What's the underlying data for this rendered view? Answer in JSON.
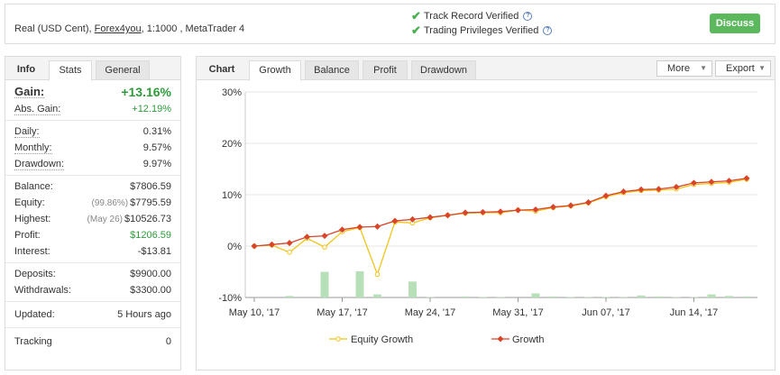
{
  "header": {
    "account_prefix": "Real (USD Cent), ",
    "broker": "Forex4you",
    "account_suffix": ", 1:1000 , MetaTrader 4",
    "track_record": "Track Record Verified",
    "trading_privileges": "Trading Privileges Verified",
    "discuss_label": "Discuss"
  },
  "left": {
    "tabs": {
      "title": "Info",
      "stats": "Stats",
      "general": "General"
    },
    "gain": {
      "label": "Gain:",
      "value": "+13.16%"
    },
    "abs_gain": {
      "label": "Abs. Gain:",
      "value": "+12.19%"
    },
    "daily": {
      "label": "Daily:",
      "value": "0.31%"
    },
    "monthly": {
      "label": "Monthly:",
      "value": "9.57%"
    },
    "drawdown": {
      "label": "Drawdown:",
      "value": "9.97%"
    },
    "balance": {
      "label": "Balance:",
      "value": "$7806.59"
    },
    "equity": {
      "label": "Equity:",
      "note": "(99.86%)",
      "value": "$7795.59"
    },
    "highest": {
      "label": "Highest:",
      "note": "(May 26)",
      "value": "$10526.73"
    },
    "profit": {
      "label": "Profit:",
      "value": "$1206.59"
    },
    "interest": {
      "label": "Interest:",
      "value": "-$13.81"
    },
    "deposits": {
      "label": "Deposits:",
      "value": "$9900.00"
    },
    "withdrawals": {
      "label": "Withdrawals:",
      "value": "$3300.00"
    },
    "updated": {
      "label": "Updated:",
      "value": "5 Hours ago"
    },
    "tracking": {
      "label": "Tracking",
      "value": "0"
    }
  },
  "right": {
    "tabs": {
      "title": "Chart",
      "growth": "Growth",
      "balance": "Balance",
      "profit": "Profit",
      "drawdown": "Drawdown"
    },
    "more_label": "More",
    "export_label": "Export"
  },
  "colors": {
    "equity": "#f0c419",
    "growth": "#d9452b",
    "bars": "#b8e0b8",
    "discuss": "#5cb85c",
    "gain_green": "#2e9b3b"
  },
  "chart_data": {
    "type": "line",
    "ylabel": "",
    "xlabel": "",
    "ylim": [
      -10,
      30
    ],
    "yticks": [
      "30%",
      "20%",
      "10%",
      "0%",
      "-10%"
    ],
    "ytick_values": [
      30,
      20,
      10,
      0,
      -10
    ],
    "xtick_labels": [
      "May 10, '17",
      "May 17, '17",
      "May 24, '17",
      "May 31, '17",
      "Jun 07, '17",
      "Jun 14, '17"
    ],
    "xtick_index": [
      0,
      5,
      10,
      15,
      20,
      25
    ],
    "n_points": 29,
    "series": [
      {
        "name": "Equity Growth",
        "values": [
          0,
          0.2,
          -1.2,
          1.5,
          -0.2,
          2.8,
          3.6,
          -5.5,
          4.7,
          4.5,
          5.5,
          6,
          6.4,
          6.5,
          6.5,
          7,
          6.8,
          7.5,
          7.8,
          8.4,
          9.6,
          10.4,
          10.8,
          10.9,
          11.1,
          12,
          12.2,
          12.4,
          13
        ]
      },
      {
        "name": "Growth",
        "values": [
          0,
          0.3,
          0.6,
          1.8,
          2,
          3.2,
          3.7,
          3.8,
          4.9,
          5.2,
          5.6,
          6,
          6.5,
          6.6,
          6.7,
          7,
          7.1,
          7.6,
          7.9,
          8.5,
          9.8,
          10.6,
          11,
          11.1,
          11.5,
          12.3,
          12.5,
          12.7,
          13.2
        ]
      }
    ],
    "bars": [
      0,
      0,
      0.3,
      0,
      5,
      0,
      5.1,
      0.6,
      0,
      3.1,
      0.1,
      0,
      0.2,
      0.1,
      0.1,
      0,
      0.8,
      0.2,
      0.1,
      0.1,
      0.1,
      0.1,
      0.4,
      0.2,
      0.1,
      0.1,
      0.6,
      0.3,
      0.2
    ]
  }
}
